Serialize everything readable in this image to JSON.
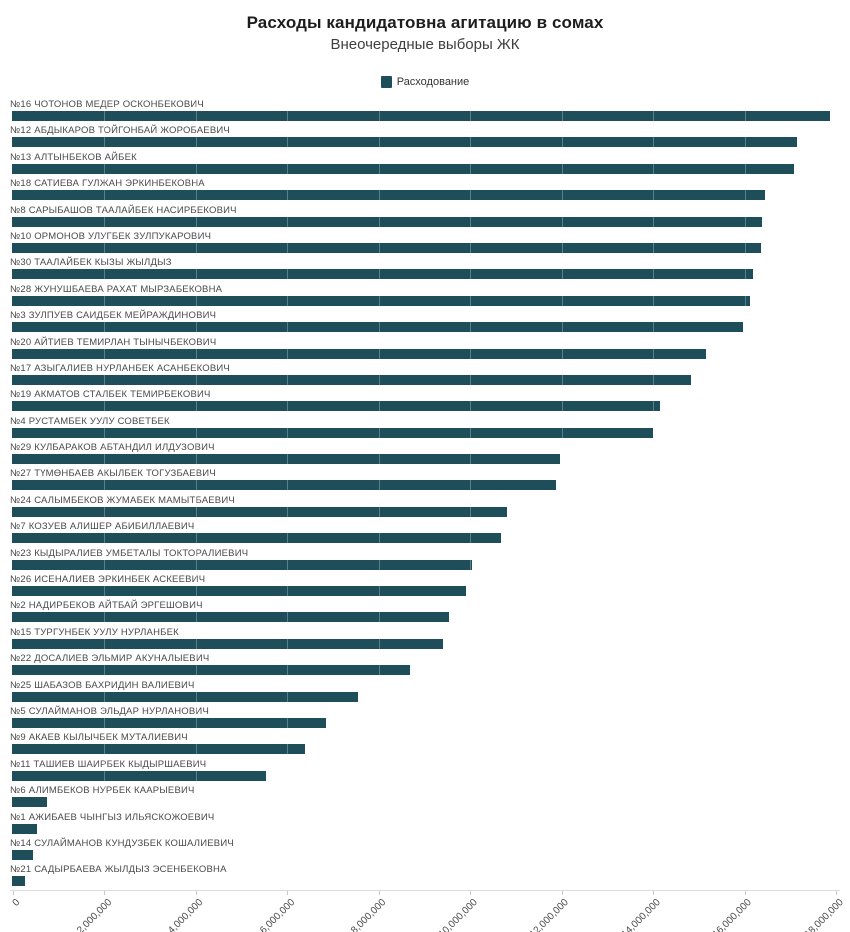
{
  "chart_data": {
    "type": "bar",
    "orientation": "horizontal",
    "title": "Расходы кандидатовна агитацию в сомах",
    "subtitle": "Внеочередные выборы ЖК",
    "legend": {
      "position": "top-center",
      "label": "Расходование"
    },
    "xlabel": "",
    "ylabel": "",
    "xlim": [
      0,
      18000000
    ],
    "x_tick_labels": [
      "0",
      "2,000,000",
      "4,000,000",
      "6,000,000",
      "8,000,000",
      "10,000,000",
      "12,000,000",
      "14,000,000",
      "16,000,000",
      "18,000,000"
    ],
    "grid": "faint vertical gridlines visible only over bars",
    "categories": [
      "№16 ЧОТОНОВ МЕДЕР ОСКОНБЕКОВИЧ",
      "№12 АБДЫКАРОВ ТОЙГОНБАЙ ЖОРОБАЕВИЧ",
      "№13 АЛТЫНБЕКОВ АЙБЕК",
      "№18 САТИЕВА ГУЛЖАН ЭРКИНБЕКОВНА",
      "№8 САРЫБАШОВ ТААЛАЙБЕК НАСИРБЕКОВИЧ",
      "№10 ОРМОНОВ УЛУГБЕК ЗУЛПУКАРОВИЧ",
      "№30 ТААЛАЙБЕК КЫЗЫ ЖЫЛДЫЗ",
      "№28 ЖУНУШБАЕВА РАХАТ МЫРЗАБЕКОВНА",
      "№3 ЗУЛПУЕВ САИДБЕК МЕЙРАЖДИНОВИЧ",
      "№20 АЙТИЕВ ТЕМИРЛАН ТЫНЫЧБЕКОВИЧ",
      "№17 АЗЫГАЛИЕВ НУРЛАНБЕК АСАНБЕКОВИЧ",
      "№19 АКМАТОВ СТАЛБЕК ТЕМИРБЕКОВИЧ",
      "№4 РУСТАМБЕК УУЛУ СОВЕТБЕК",
      "№29 КУЛБАРАКОВ АБТАНДИЛ ИЛДУЗОВИЧ",
      "№27 ТҮМӨНБАЕВ АКЫЛБЕК ТОГУЗБАЕВИЧ",
      "№24 САЛЫМБЕКОВ ЖУМАБЕК МАМЫТБАЕВИЧ",
      "№7 КОЗУЕВ АЛИШЕР АБИБИЛЛАЕВИЧ",
      "№23 КЫДЫРАЛИЕВ УМБЕТАЛЫ ТОКТОРАЛИЕВИЧ",
      "№26 ИСЕНАЛИЕВ ЭРКИНБЕК АСКЕЕВИЧ",
      "№2 НАДИРБЕКОВ АЙТБАЙ ЭРГЕШОВИЧ",
      "№15 ТУРГУНБЕК УУЛУ НУРЛАНБЕК",
      "№22 ДОСАЛИЕВ ЭЛЬМИР АКУНАЛЫЕВИЧ",
      "№25 ШАБАЗОВ БАХРИДИН ВАЛИЕВИЧ",
      "№5 СУЛАЙМАНОВ ЭЛЬДАР НУРЛАНОВИЧ",
      "№9 АКАЕВ КЫЛЫЧБЕК МУТАЛИЕВИЧ",
      "№11 ТАШИЕВ ШАИРБЕК КЫДЫРШАЕВИЧ",
      "№6 АЛИМБЕКОВ НУРБЕК КААРЫЕВИЧ",
      "№1 АЖИБАЕВ ЧЫНГЫЗ ИЛЬЯСКОЖОЕВИЧ",
      "№14 СУЛАЙМАНОВ КУНДУЗБЕК КОШАЛИЕВИЧ",
      "№21 САДЫРБАЕВА ЖЫЛДЫЗ ЭСЕНБЕКОВНА"
    ],
    "series": [
      {
        "name": "Расходование",
        "color": "#1e4e59",
        "values": [
          17880000,
          17160000,
          17100000,
          16450000,
          16390000,
          16380000,
          16190000,
          16120000,
          15970000,
          15160000,
          14850000,
          14170000,
          14000000,
          11970000,
          11890000,
          10810000,
          10680000,
          10060000,
          9930000,
          9540000,
          9430000,
          8690000,
          7570000,
          6870000,
          6410000,
          5540000,
          770000,
          550000,
          460000,
          280000
        ]
      }
    ]
  },
  "colors": {
    "bar": "#1e4e59",
    "title_text": "#1d1d1d",
    "subtitle_text": "#3f3f3f",
    "label_text": "#4a4a4a",
    "axis_line": "#dcdcdc",
    "background": "#ffffff"
  }
}
